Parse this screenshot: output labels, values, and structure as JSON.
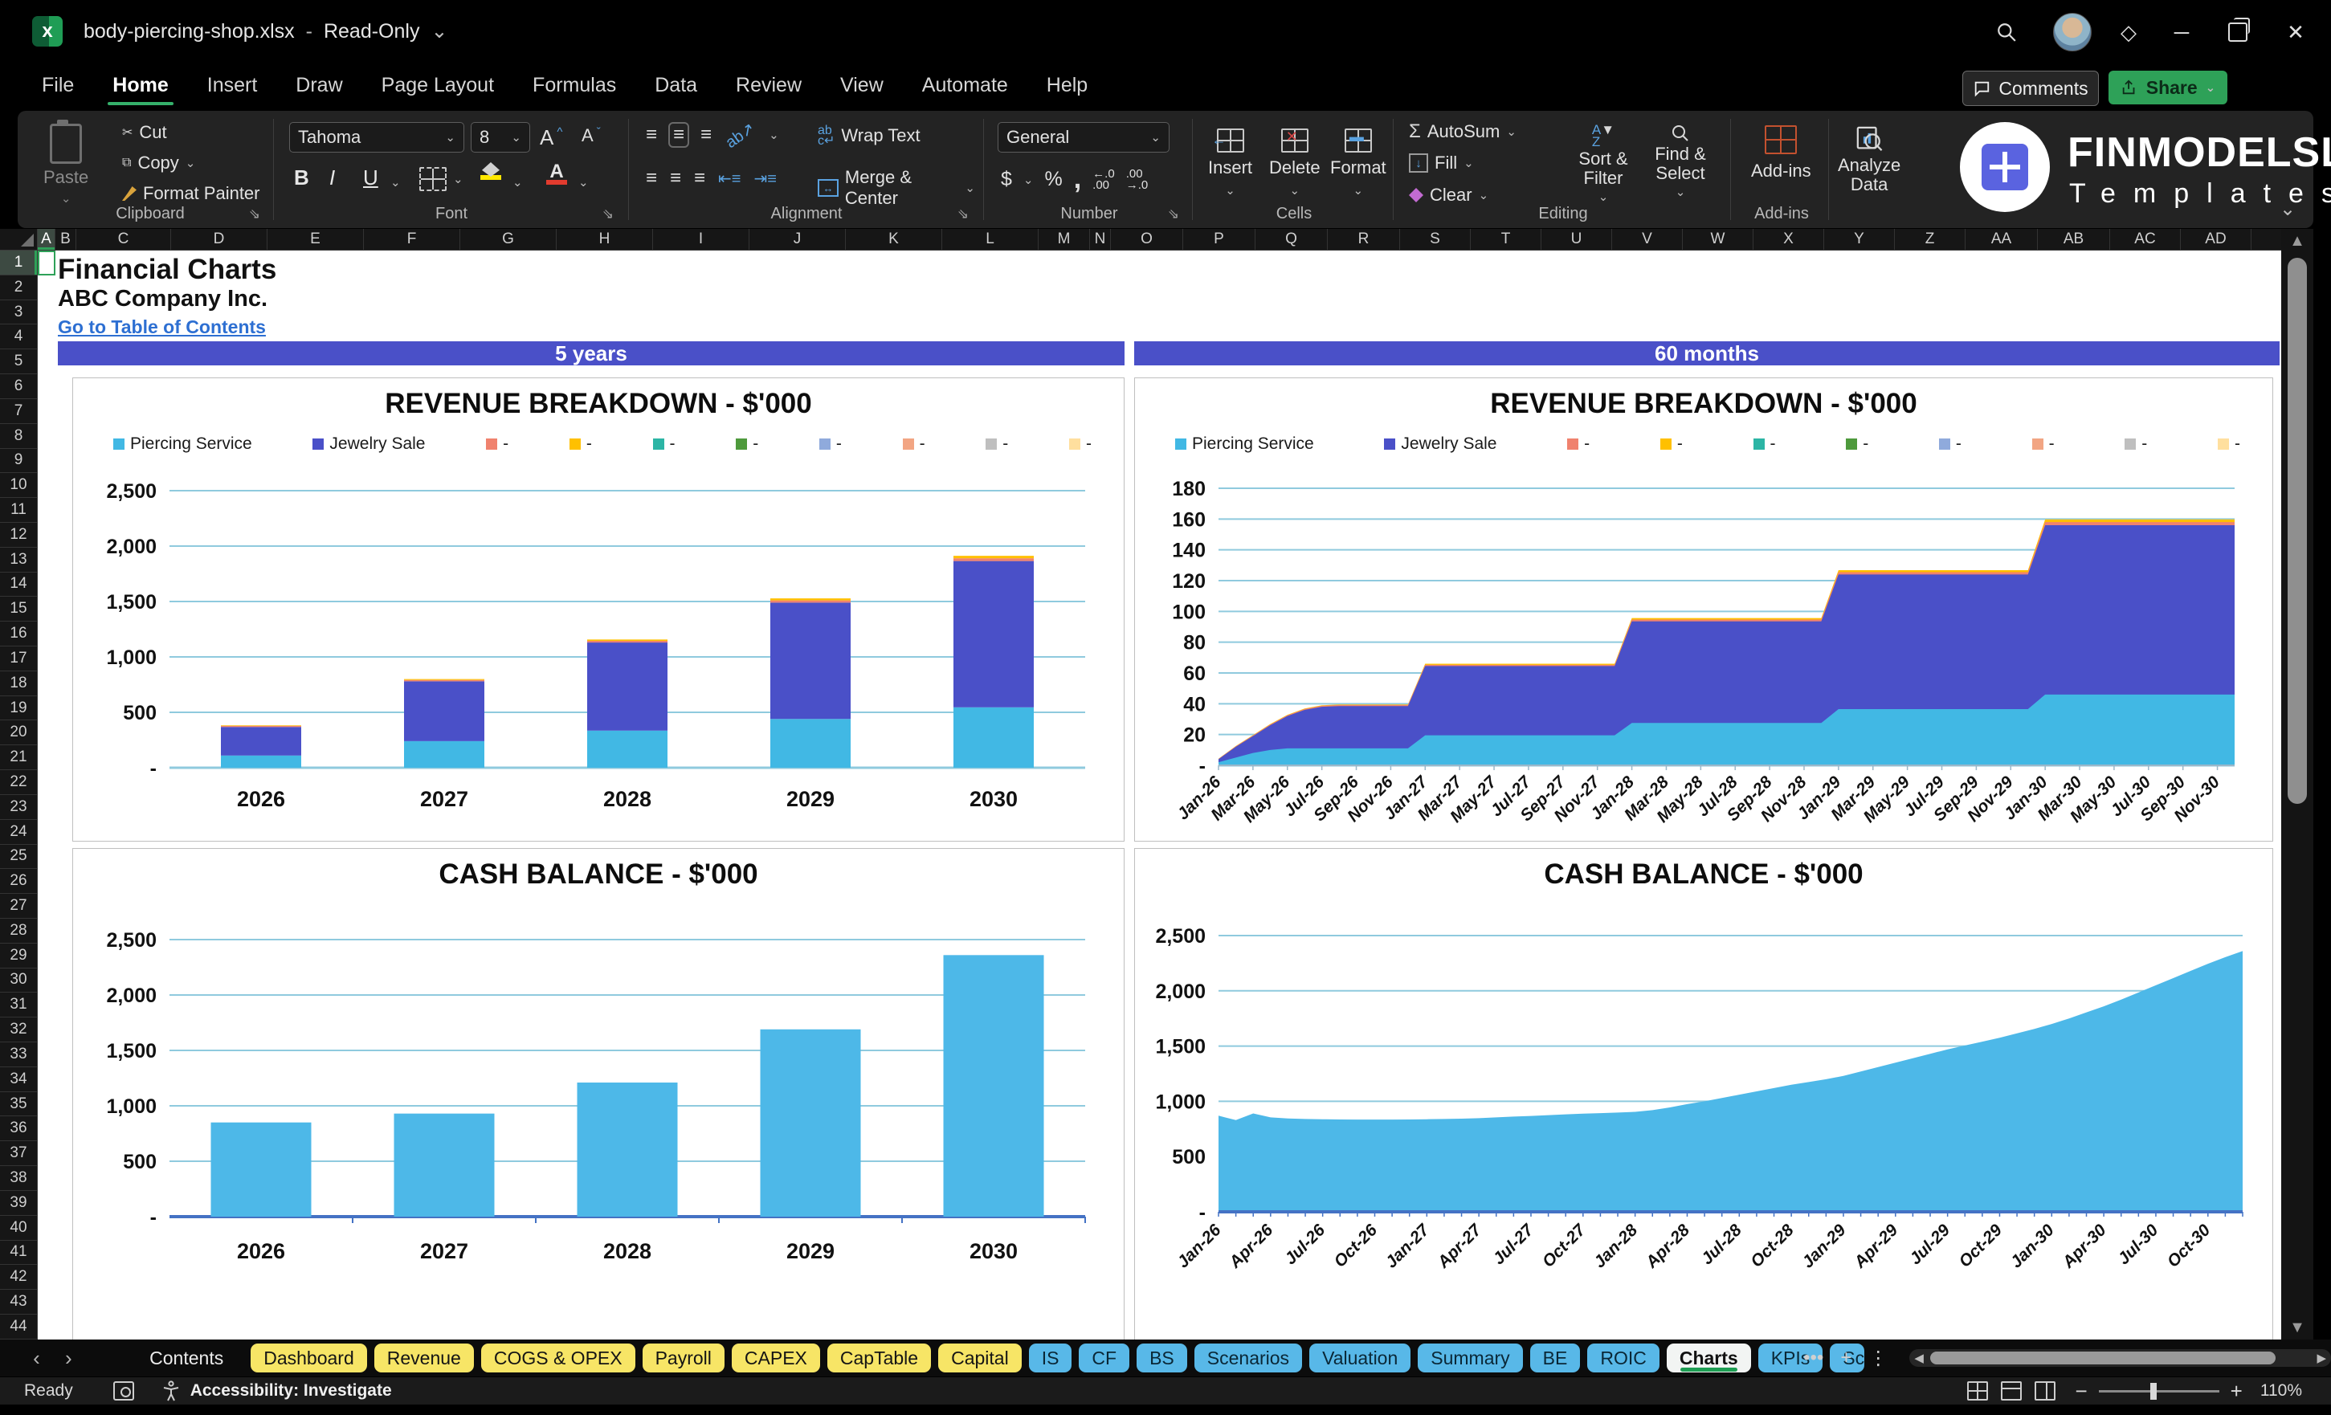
{
  "window": {
    "filename": "body-piercing-shop.xlsx",
    "separator": "-",
    "mode": "Read-Only"
  },
  "menu": {
    "tabs": [
      "File",
      "Home",
      "Insert",
      "Draw",
      "Page Layout",
      "Formulas",
      "Data",
      "Review",
      "View",
      "Automate",
      "Help"
    ],
    "active": "Home",
    "comments_label": "Comments",
    "share_label": "Share"
  },
  "ribbon": {
    "clipboard": {
      "label": "Clipboard",
      "paste": "Paste",
      "cut": "Cut",
      "copy": "Copy",
      "format_painter": "Format Painter"
    },
    "font": {
      "label": "Font",
      "font_name": "Tahoma",
      "font_size": "8",
      "bold": "B",
      "italic": "I",
      "underline": "U",
      "grow": "A",
      "shrink": "A",
      "color_glyph": "A"
    },
    "alignment": {
      "label": "Alignment",
      "wrap": "Wrap Text",
      "merge": "Merge & Center",
      "orient": "ab"
    },
    "number": {
      "label": "Number",
      "format": "General",
      "currency": "$",
      "percent": "%",
      "comma": ",",
      "inc": ".00",
      "dec": ".00"
    },
    "cells": {
      "label": "Cells",
      "insert": "Insert",
      "delete": "Delete",
      "format": "Format"
    },
    "editing": {
      "label": "Editing",
      "autosum": "AutoSum",
      "fill": "Fill",
      "clear": "Clear",
      "sort": "Sort & Filter",
      "find": "Find & Select",
      "sigma": "Σ"
    },
    "addins": {
      "label": "Add-ins",
      "addins": "Add-ins",
      "analyze_1": "Analyze",
      "analyze_2": "Data"
    }
  },
  "brand": {
    "name": "FINMODELSLAB",
    "subtitle": "Templates"
  },
  "sheet": {
    "title": "Financial Charts",
    "company": "ABC Company Inc.",
    "link": "Go to Table of Contents",
    "sections": [
      "5 years",
      "60 months"
    ],
    "columns": [
      "A",
      "B",
      "C",
      "D",
      "E",
      "F",
      "G",
      "H",
      "I",
      "J",
      "K",
      "L",
      "M",
      "N",
      "O",
      "P",
      "Q",
      "R",
      "S",
      "T",
      "U",
      "V",
      "W",
      "X",
      "Y",
      "Z",
      "AA",
      "AB",
      "AC",
      "AD"
    ],
    "selected_column": "A",
    "selected_row": "1",
    "rows_visible": 45
  },
  "legend_revenue": [
    {
      "label": "Piercing Service",
      "color": "#41b8e4"
    },
    {
      "label": "Jewelry Sale",
      "color": "#4a50c8"
    },
    {
      "label": "-",
      "color": "#f0826e"
    },
    {
      "label": "-",
      "color": "#ffc000"
    },
    {
      "label": "-",
      "color": "#2cb5a5"
    },
    {
      "label": "-",
      "color": "#4e9a3c"
    },
    {
      "label": "-",
      "color": "#8faadc"
    },
    {
      "label": "-",
      "color": "#f2a583"
    },
    {
      "label": "-",
      "color": "#bfbfbf"
    },
    {
      "label": "-",
      "color": "#ffdf9e"
    }
  ],
  "chart_data": [
    {
      "id": "rev5y",
      "type": "stacked-bar",
      "title": "REVENUE BREAKDOWN - $'000",
      "section": "5 years",
      "categories": [
        "2026",
        "2027",
        "2028",
        "2029",
        "2030"
      ],
      "series": [
        {
          "name": "Piercing Service",
          "color": "#41b8e4",
          "values": [
            110,
            240,
            335,
            440,
            545
          ]
        },
        {
          "name": "Jewelry Sale",
          "color": "#4a50c8",
          "values": [
            258,
            540,
            795,
            1050,
            1320
          ]
        },
        {
          "name": "-",
          "color": "#f0826e",
          "values": [
            10,
            12,
            15,
            20,
            25
          ]
        },
        {
          "name": "-",
          "color": "#ffc000",
          "values": [
            5,
            8,
            12,
            18,
            22
          ]
        }
      ],
      "ylim": [
        0,
        2500
      ],
      "yticks": [
        {
          "v": 2500,
          "t": "2,500"
        },
        {
          "v": 2000,
          "t": "2,000"
        },
        {
          "v": 1500,
          "t": "1,500"
        },
        {
          "v": 1000,
          "t": "1,000"
        },
        {
          "v": 500,
          "t": "500"
        },
        {
          "v": 0,
          "t": "-"
        }
      ],
      "grid": true,
      "legend_position": "top"
    },
    {
      "id": "rev60m",
      "type": "stacked-area",
      "title": "REVENUE BREAKDOWN - $'000",
      "section": "60 months",
      "x": [
        "Jan-26",
        "Feb-26",
        "Mar-26",
        "Apr-26",
        "May-26",
        "Jun-26",
        "Jul-26",
        "Aug-26",
        "Sep-26",
        "Oct-26",
        "Nov-26",
        "Dec-26",
        "Jan-27",
        "Feb-27",
        "Mar-27",
        "Apr-27",
        "May-27",
        "Jun-27",
        "Jul-27",
        "Aug-27",
        "Sep-27",
        "Oct-27",
        "Nov-27",
        "Dec-27",
        "Jan-28",
        "Feb-28",
        "Mar-28",
        "Apr-28",
        "May-28",
        "Jun-28",
        "Jul-28",
        "Aug-28",
        "Sep-28",
        "Oct-28",
        "Nov-28",
        "Dec-28",
        "Jan-29",
        "Feb-29",
        "Mar-29",
        "Apr-29",
        "May-29",
        "Jun-29",
        "Jul-29",
        "Aug-29",
        "Sep-29",
        "Oct-29",
        "Nov-29",
        "Dec-29",
        "Jan-30",
        "Feb-30",
        "Mar-30",
        "Apr-30",
        "May-30",
        "Jun-30",
        "Jul-30",
        "Aug-30",
        "Sep-30",
        "Oct-30",
        "Nov-30",
        "Dec-30"
      ],
      "label_step": 2,
      "series": [
        {
          "name": "Piercing Service",
          "color": "#41b8e4",
          "values": [
            2,
            5,
            8,
            10,
            11,
            11,
            11,
            11,
            11,
            11,
            11,
            11,
            19.5,
            19.5,
            19.5,
            19.5,
            19.5,
            19.5,
            19.5,
            19.5,
            19.5,
            19.5,
            19.5,
            19.5,
            27.5,
            27.5,
            27.5,
            27.5,
            27.5,
            27.5,
            27.5,
            27.5,
            27.5,
            27.5,
            27.5,
            27.5,
            36.5,
            36.5,
            36.5,
            36.5,
            36.5,
            36.5,
            36.5,
            36.5,
            36.5,
            36.5,
            36.5,
            36.5,
            46,
            46,
            46,
            46,
            46,
            46,
            46,
            46,
            46,
            46,
            46,
            46
          ]
        },
        {
          "name": "Jewelry Sale",
          "color": "#4a50c8",
          "values": [
            2,
            7,
            11,
            16,
            21,
            25,
            27,
            27.5,
            27.5,
            27.5,
            27.5,
            27.5,
            45,
            45,
            45,
            45,
            45,
            45,
            45,
            45,
            45,
            45,
            45,
            45,
            66,
            66,
            66,
            66,
            66,
            66,
            66,
            66,
            66,
            66,
            66,
            66,
            87.5,
            87.5,
            87.5,
            87.5,
            87.5,
            87.5,
            87.5,
            87.5,
            87.5,
            87.5,
            87.5,
            87.5,
            110,
            110,
            110,
            110,
            110,
            110,
            110,
            110,
            110,
            110,
            110,
            110
          ]
        },
        {
          "name": "-",
          "color": "#f0826e",
          "values": [
            0.2,
            0.3,
            0.4,
            0.5,
            0.5,
            0.6,
            0.7,
            0.7,
            0.7,
            0.7,
            0.7,
            0.7,
            0.8,
            0.8,
            0.8,
            0.8,
            0.8,
            0.8,
            0.8,
            0.8,
            0.8,
            0.8,
            0.8,
            0.8,
            1.2,
            1.2,
            1.2,
            1.2,
            1.2,
            1.2,
            1.2,
            1.2,
            1.2,
            1.2,
            1.2,
            1.2,
            1.5,
            1.5,
            1.5,
            1.5,
            1.5,
            1.5,
            1.5,
            1.5,
            1.5,
            1.5,
            1.5,
            1.5,
            2,
            2,
            2,
            2,
            2,
            2,
            2,
            2,
            2,
            2,
            2,
            2
          ]
        },
        {
          "name": "-",
          "color": "#ffc000",
          "values": [
            0.1,
            0.2,
            0.2,
            0.3,
            0.3,
            0.3,
            0.3,
            0.3,
            0.3,
            0.3,
            0.3,
            0.3,
            0.7,
            0.7,
            0.7,
            0.7,
            0.7,
            0.7,
            0.7,
            0.7,
            0.7,
            0.7,
            0.7,
            0.7,
            1,
            1,
            1,
            1,
            1,
            1,
            1,
            1,
            1,
            1,
            1,
            1,
            1.3,
            1.3,
            1.3,
            1.3,
            1.3,
            1.3,
            1.3,
            1.3,
            1.3,
            1.3,
            1.3,
            1.3,
            1.8,
            1.8,
            1.8,
            1.8,
            1.8,
            1.8,
            1.8,
            1.8,
            1.8,
            1.8,
            1.8,
            1.8
          ]
        }
      ],
      "ylim": [
        0,
        180
      ],
      "yticks": [
        {
          "v": 180,
          "t": "180"
        },
        {
          "v": 160,
          "t": "160"
        },
        {
          "v": 140,
          "t": "140"
        },
        {
          "v": 120,
          "t": "120"
        },
        {
          "v": 100,
          "t": "100"
        },
        {
          "v": 80,
          "t": "80"
        },
        {
          "v": 60,
          "t": "60"
        },
        {
          "v": 40,
          "t": "40"
        },
        {
          "v": 20,
          "t": "20"
        },
        {
          "v": 0,
          "t": "-"
        }
      ],
      "grid": true,
      "legend_position": "top"
    },
    {
      "id": "cash5y",
      "type": "bar",
      "title": "CASH BALANCE - $'000",
      "section": "5 years",
      "categories": [
        "2026",
        "2027",
        "2028",
        "2029",
        "2030"
      ],
      "values": [
        850,
        930,
        1210,
        1690,
        2360
      ],
      "color": "#4db8e8",
      "ylim": [
        0,
        2500
      ],
      "yticks": [
        {
          "v": 2500,
          "t": "2,500"
        },
        {
          "v": 2000,
          "t": "2,000"
        },
        {
          "v": 1500,
          "t": "1,500"
        },
        {
          "v": 1000,
          "t": "1,000"
        },
        {
          "v": 500,
          "t": "500"
        },
        {
          "v": 0,
          "t": "-"
        }
      ],
      "grid": true,
      "legend_position": "none"
    },
    {
      "id": "cash60m",
      "type": "area",
      "title": "CASH BALANCE - $'000",
      "section": "60 months",
      "x": [
        "Jan-26",
        "Feb-26",
        "Mar-26",
        "Apr-26",
        "May-26",
        "Jun-26",
        "Jul-26",
        "Aug-26",
        "Sep-26",
        "Oct-26",
        "Nov-26",
        "Dec-26",
        "Jan-27",
        "Feb-27",
        "Mar-27",
        "Apr-27",
        "May-27",
        "Jun-27",
        "Jul-27",
        "Aug-27",
        "Sep-27",
        "Oct-27",
        "Nov-27",
        "Dec-27",
        "Jan-28",
        "Feb-28",
        "Mar-28",
        "Apr-28",
        "May-28",
        "Jun-28",
        "Jul-28",
        "Aug-28",
        "Sep-28",
        "Oct-28",
        "Nov-28",
        "Dec-28",
        "Jan-29",
        "Feb-29",
        "Mar-29",
        "Apr-29",
        "May-29",
        "Jun-29",
        "Jul-29",
        "Aug-29",
        "Sep-29",
        "Oct-29",
        "Nov-29",
        "Dec-29",
        "Jan-30",
        "Feb-30",
        "Mar-30",
        "Apr-30",
        "May-30",
        "Jun-30",
        "Jul-30",
        "Aug-30",
        "Sep-30",
        "Oct-30",
        "Nov-30",
        "Dec-30"
      ],
      "label_step": 3,
      "values": [
        870,
        830,
        890,
        855,
        845,
        840,
        838,
        836,
        835,
        835,
        835,
        836,
        838,
        840,
        843,
        848,
        855,
        862,
        868,
        875,
        882,
        888,
        893,
        898,
        905,
        920,
        945,
        975,
        1000,
        1030,
        1060,
        1090,
        1120,
        1150,
        1175,
        1200,
        1230,
        1270,
        1310,
        1350,
        1390,
        1430,
        1470,
        1505,
        1540,
        1575,
        1615,
        1655,
        1700,
        1750,
        1805,
        1860,
        1920,
        1985,
        2050,
        2115,
        2180,
        2245,
        2305,
        2360
      ],
      "color": "#4db8e8",
      "ylim": [
        0,
        2500
      ],
      "yticks": [
        {
          "v": 2500,
          "t": "2,500"
        },
        {
          "v": 2000,
          "t": "2,000"
        },
        {
          "v": 1500,
          "t": "1,500"
        },
        {
          "v": 1000,
          "t": "1,000"
        },
        {
          "v": 500,
          "t": "500"
        },
        {
          "v": 0,
          "t": "-"
        }
      ],
      "grid": true,
      "legend_position": "none"
    }
  ],
  "sheet_tabs": [
    {
      "label": "Contents",
      "style": "plain"
    },
    {
      "label": "Dashboard",
      "style": "yellow"
    },
    {
      "label": "Revenue",
      "style": "yellow"
    },
    {
      "label": "COGS & OPEX",
      "style": "yellow"
    },
    {
      "label": "Payroll",
      "style": "yellow"
    },
    {
      "label": "CAPEX",
      "style": "yellow"
    },
    {
      "label": "CapTable",
      "style": "yellow"
    },
    {
      "label": "Capital",
      "style": "yellow"
    },
    {
      "label": "IS",
      "style": "blue"
    },
    {
      "label": "CF",
      "style": "blue"
    },
    {
      "label": "BS",
      "style": "blue"
    },
    {
      "label": "Scenarios",
      "style": "blue"
    },
    {
      "label": "Valuation",
      "style": "blue"
    },
    {
      "label": "Summary",
      "style": "blue"
    },
    {
      "label": "BE",
      "style": "blue"
    },
    {
      "label": "ROIC",
      "style": "blue"
    },
    {
      "label": "Charts",
      "style": "active"
    },
    {
      "label": "KPIs",
      "style": "blue"
    },
    {
      "label": "Sc",
      "style": "blue clip"
    }
  ],
  "status": {
    "ready": "Ready",
    "accessibility": "Accessibility: Investigate",
    "zoom": "110%"
  }
}
